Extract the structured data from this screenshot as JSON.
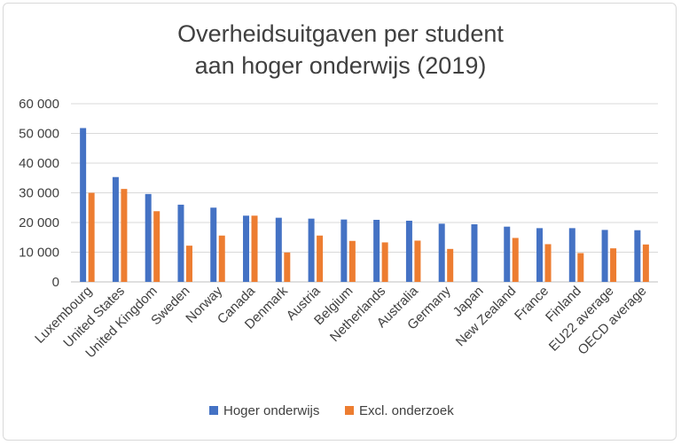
{
  "chart_data": {
    "type": "bar",
    "title_lines": [
      "Overheidsuitgaven per student",
      "aan hoger onderwijs (2019)"
    ],
    "categories": [
      "Luxembourg",
      "United States",
      "United Kingdom",
      "Sweden",
      "Norway",
      "Canada",
      "Denmark",
      "Austria",
      "Belgium",
      "Netherlands",
      "Australia",
      "Germany",
      "Japan",
      "New Zealand",
      "France",
      "Finland",
      "EU22 average",
      "OECD average"
    ],
    "series": [
      {
        "name": "Hoger onderwijs",
        "color": "#4472c4",
        "values": [
          51800,
          35300,
          29600,
          26000,
          25000,
          22300,
          21600,
          21300,
          21000,
          20900,
          20600,
          19600,
          19400,
          18600,
          18100,
          18100,
          17500,
          17400
        ]
      },
      {
        "name": "Excl. onderzoek",
        "color": "#ed7d31",
        "values": [
          30000,
          31300,
          23800,
          12200,
          15600,
          22300,
          9900,
          15600,
          13800,
          13300,
          13900,
          11100,
          null,
          14800,
          12700,
          9700,
          11300,
          12600
        ]
      }
    ],
    "ylim": [
      0,
      60000
    ],
    "yticks": [
      0,
      10000,
      20000,
      30000,
      40000,
      50000,
      60000
    ],
    "ytick_labels": [
      "0",
      "10 000",
      "20 000",
      "30 000",
      "40 000",
      "50 000",
      "60 000"
    ],
    "xlabel": "",
    "ylabel": "",
    "grid": true,
    "legend_position": "bottom"
  }
}
